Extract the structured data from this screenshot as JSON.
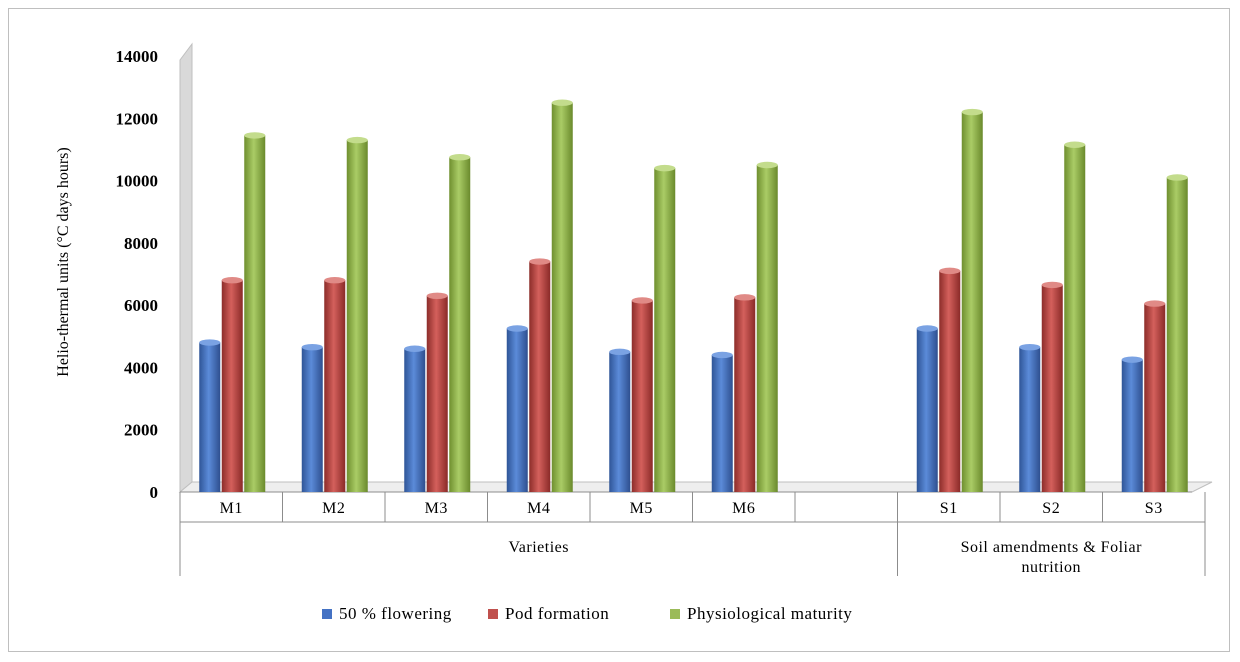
{
  "chart_data": {
    "type": "bar",
    "ylabel": "Helio-thermal units (°C days hours)",
    "ylim": [
      0,
      14000
    ],
    "yticks": [
      0,
      2000,
      4000,
      6000,
      8000,
      10000,
      12000,
      14000
    ],
    "categories": [
      "M1",
      "M2",
      "M3",
      "M4",
      "M5",
      "M6",
      "",
      "S1",
      "S2",
      "S3"
    ],
    "groups": [
      {
        "label": "Varieties",
        "span": [
          0,
          6
        ]
      },
      {
        "label": "Soil amendments & Foliar nutrition",
        "span": [
          7,
          9
        ]
      }
    ],
    "series": [
      {
        "name": "50 % flowering",
        "color": "#4472c4",
        "values": [
          4800,
          4650,
          4600,
          5250,
          4500,
          4400,
          null,
          5250,
          4650,
          4250
        ]
      },
      {
        "name": "Pod formation",
        "color": "#c0504d",
        "values": [
          6800,
          6800,
          6300,
          7400,
          6150,
          6250,
          null,
          7100,
          6650,
          6050
        ]
      },
      {
        "name": "Physiological maturity",
        "color": "#9bbb59",
        "values": [
          11450,
          11300,
          10750,
          12500,
          10400,
          10500,
          null,
          12200,
          11150,
          10100
        ]
      }
    ],
    "legend_position": "bottom",
    "grid": false
  }
}
